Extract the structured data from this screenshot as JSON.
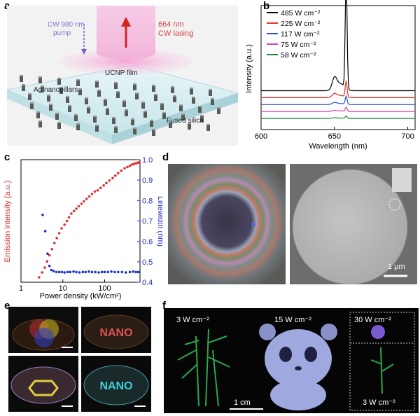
{
  "panel_labels": {
    "a": "a",
    "b": "b",
    "c": "c",
    "d": "d",
    "e": "e",
    "f": "f"
  },
  "panel_a": {
    "pump": "CW 980 nm\npump",
    "lasing": "664 nm\nCW lasing",
    "film": "UCNP film",
    "pillars": "Ag nanopillars",
    "substrate": "Fused silica"
  },
  "chart_data": [
    {
      "type": "line",
      "panel": "b",
      "xlabel": "Wavelength (nm)",
      "ylabel": "Intensity (a.u.)",
      "xlim": [
        600,
        705
      ],
      "xticks": [
        "600",
        "650",
        "700"
      ],
      "legend_position": "top-left",
      "series": [
        {
          "name": "485 W cm⁻²",
          "color": "#000000",
          "baseline": 0.3,
          "peak": 0.95,
          "shoulder": 0.1
        },
        {
          "name": "225 W cm⁻²",
          "color": "#e8322c",
          "baseline": 0.24,
          "peak": 0.14,
          "shoulder": 0.03
        },
        {
          "name": "117 W cm⁻²",
          "color": "#2b4fd1",
          "baseline": 0.18,
          "peak": 0.07,
          "shoulder": 0.015
        },
        {
          "name": "75 W cm⁻²",
          "color": "#d2479c",
          "baseline": 0.12,
          "peak": 0.035,
          "shoulder": 0.008
        },
        {
          "name": "58 W cm⁻²",
          "color": "#1e8a3c",
          "baseline": 0.06,
          "peak": 0.02,
          "shoulder": 0.005
        }
      ],
      "peak_nm": 658,
      "shoulder_nm": 650
    },
    {
      "type": "scatter",
      "panel": "c",
      "xlabel": "Power density (kW/cm²)",
      "ylabel_left": "Emission intensity (a.u.)",
      "ylabel_right": "Linewidth (nm)",
      "x_scale": "log",
      "xlim": [
        1,
        700
      ],
      "xticks": [
        "1",
        "10",
        "100"
      ],
      "y2lim": [
        0.4,
        1.0
      ],
      "y2ticks": [
        "0.4",
        "0.5",
        "0.6",
        "0.7",
        "0.8",
        "0.9",
        "1.0"
      ],
      "series": [
        {
          "name": "Emission intensity",
          "color": "#e03030",
          "axis": "left",
          "x": [
            2.7,
            3.2,
            3.7,
            4.2,
            4.8,
            5.5,
            6.3,
            7.2,
            8.2,
            9.4,
            11,
            12.5,
            14,
            16,
            18.5,
            21,
            24,
            28,
            32,
            37,
            43,
            50,
            58,
            68,
            80,
            95,
            110,
            130,
            155,
            180,
            210,
            250,
            300,
            350,
            400,
            450,
            500,
            560,
            620,
            680
          ],
          "y": [
            0.04,
            0.08,
            0.12,
            0.17,
            0.22,
            0.27,
            0.32,
            0.36,
            0.4,
            0.44,
            0.47,
            0.5,
            0.53,
            0.56,
            0.58,
            0.6,
            0.62,
            0.64,
            0.66,
            0.68,
            0.7,
            0.72,
            0.74,
            0.75,
            0.77,
            0.79,
            0.81,
            0.83,
            0.85,
            0.87,
            0.89,
            0.91,
            0.93,
            0.94,
            0.95,
            0.96,
            0.965,
            0.97,
            0.975,
            0.98
          ]
        },
        {
          "name": "Linewidth",
          "color": "#2030c8",
          "axis": "right",
          "x": [
            3.3,
            3.8,
            4.3,
            4.8,
            5.3,
            6.0,
            7.0,
            8.2,
            9.5,
            11,
            13,
            15,
            18,
            21,
            25,
            30,
            35,
            42,
            50,
            60,
            72,
            86,
            100,
            120,
            145,
            175,
            210,
            260,
            320,
            400,
            480,
            560,
            640
          ],
          "y": [
            0.73,
            0.65,
            0.54,
            0.48,
            0.46,
            0.455,
            0.45,
            0.45,
            0.45,
            0.448,
            0.45,
            0.45,
            0.452,
            0.45,
            0.448,
            0.45,
            0.45,
            0.452,
            0.45,
            0.45,
            0.448,
            0.45,
            0.45,
            0.45,
            0.452,
            0.45,
            0.45,
            0.45,
            0.448,
            0.45,
            0.452,
            0.45,
            0.45
          ]
        }
      ]
    }
  ],
  "panel_d": {
    "scale": "1 μm"
  },
  "panel_e": {
    "tile2": "NANO",
    "tile4": "NANO"
  },
  "panel_f": {
    "power1": "3 W cm⁻²",
    "power2": "15 W cm⁻²",
    "power3": "30 W cm⁻²",
    "power4": "3 W cm⁻²",
    "scale": "1 cm"
  }
}
